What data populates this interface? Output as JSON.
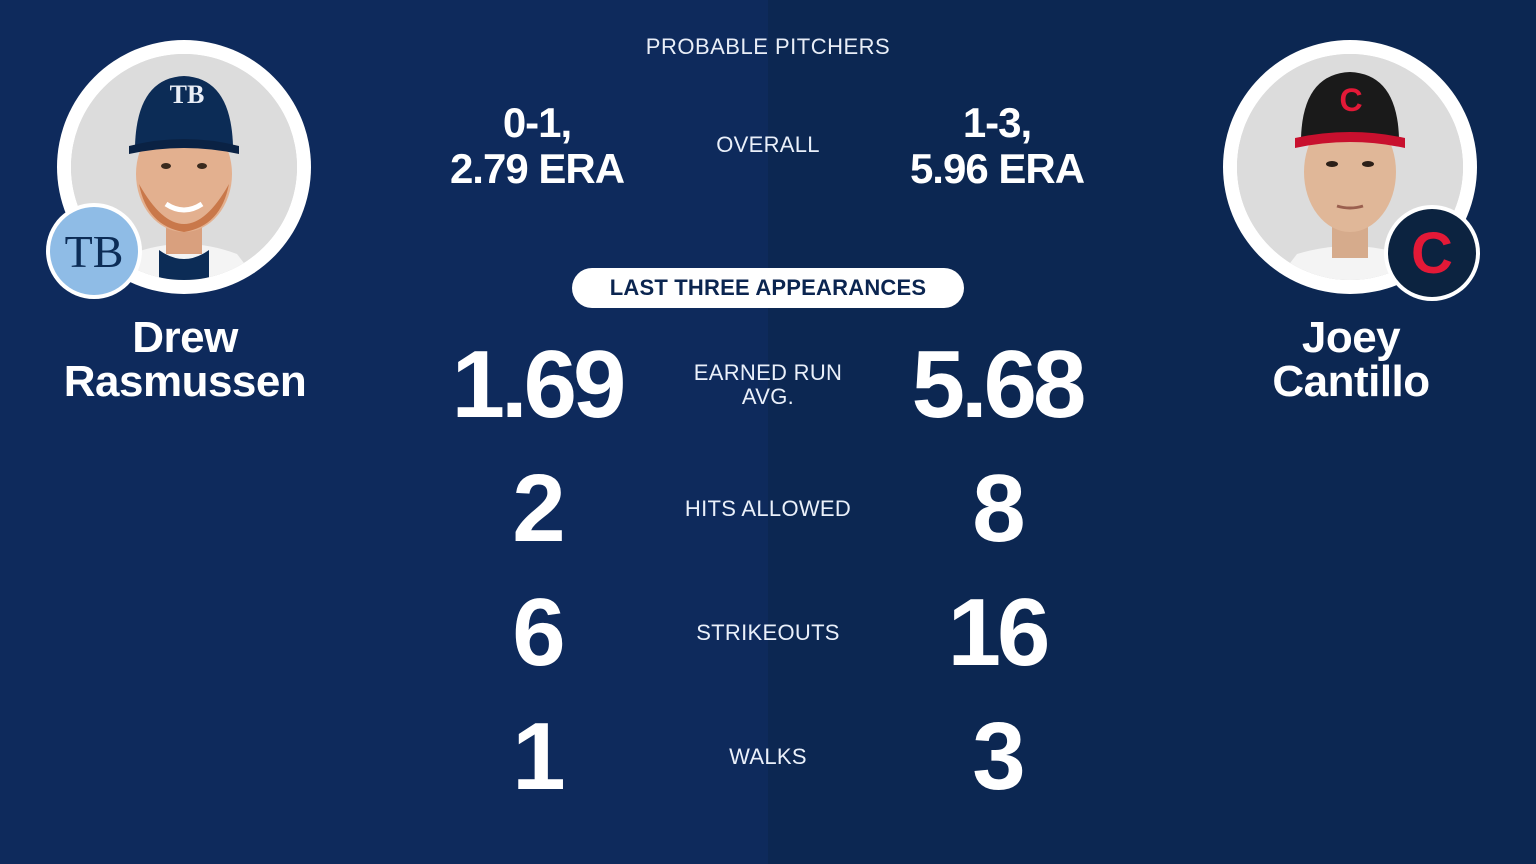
{
  "header": "PROBABLE PITCHERS",
  "away": {
    "name_line1": "Drew",
    "name_line2": "Rasmussen",
    "cap_logo": "TB",
    "team_logo": "TB",
    "overall_line1": "0-1,",
    "overall_line2": "2.79 ERA",
    "era": "1.69",
    "hits": "2",
    "strikeouts": "6",
    "walks": "1"
  },
  "home": {
    "name_line1": "Joey",
    "name_line2": "Cantillo",
    "cap_logo": "C",
    "team_logo": "C",
    "overall_line1": "1-3,",
    "overall_line2": "5.96 ERA",
    "era": "5.68",
    "hits": "8",
    "strikeouts": "16",
    "walks": "3"
  },
  "labels": {
    "overall": "OVERALL",
    "section": "LAST THREE APPEARANCES",
    "era_line1": "EARNED RUN",
    "era_line2": "AVG.",
    "hits": "HITS ALLOWED",
    "strikeouts": "STRIKEOUTS",
    "walks": "WALKS"
  },
  "colors": {
    "background": "#0e2a5c",
    "rays_light_blue": "#8fbce6",
    "rays_navy": "#0c2c56",
    "guardians_navy": "#0c2340",
    "guardians_red": "#e31937"
  }
}
